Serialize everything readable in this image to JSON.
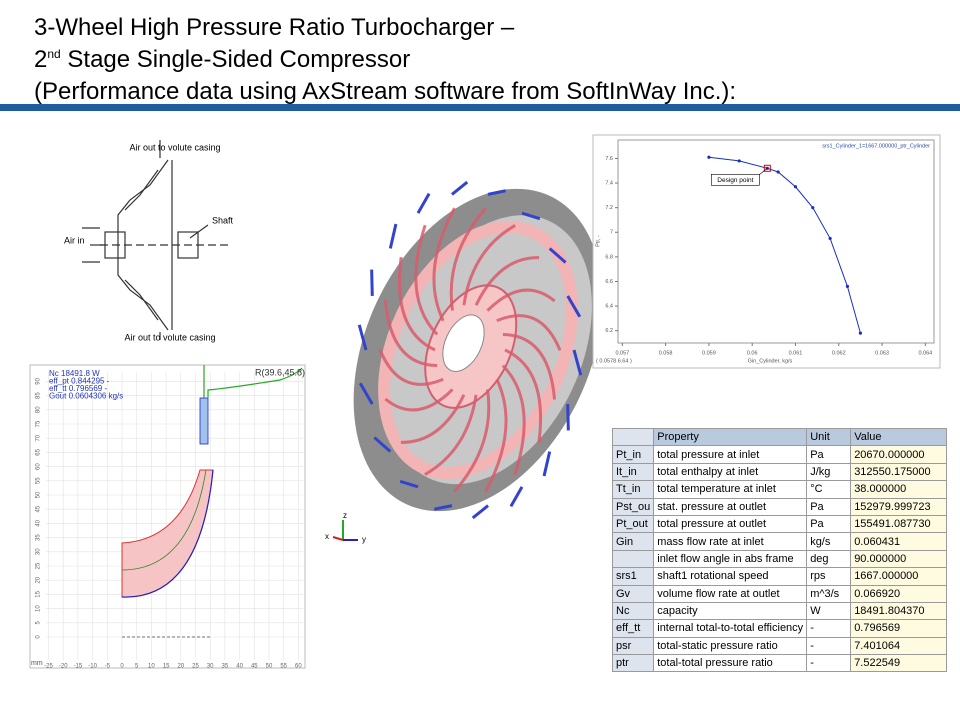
{
  "header": {
    "line1": "3-Wheel High Pressure Ratio Turbocharger –",
    "line2_num": "2",
    "line2_sup": "nd",
    "line2_rest": " Stage Single-Sided Compressor",
    "line3": "(Performance data using AxStream software from SoftInWay Inc.):"
  },
  "schematic": {
    "top_label": "Air out to volute casing",
    "shaft_label": "Shaft",
    "inlet_label": "Air in",
    "bottom_label": "Air out to volute casing"
  },
  "chart": {
    "type": "line",
    "title": "srs1_Cylinder_1=1667.000000_ptr_Cylinder",
    "x_label": "Gin_Cylinder, kg/s",
    "y_label": "Ptr, -",
    "cursor": "( 0.0578    6.64 )",
    "annotation": "Design point",
    "design_index": 2,
    "x": [
      0.059,
      0.0597,
      0.06035,
      0.0606,
      0.061,
      0.0614,
      0.0618,
      0.0622,
      0.0625
    ],
    "values": [
      7.61,
      7.58,
      7.52,
      7.49,
      7.37,
      7.2,
      6.95,
      6.56,
      6.18
    ],
    "color": "#1a2fbf",
    "xlim": [
      0.0569,
      0.0642
    ],
    "ylim": [
      6.1,
      7.75
    ],
    "xticks": [
      0.057,
      0.058,
      0.059,
      0.06,
      0.061,
      0.062,
      0.063,
      0.064
    ],
    "yticks": [
      6.2,
      6.4,
      6.6,
      6.8,
      7,
      7.2,
      7.4,
      7.6
    ]
  },
  "meridional": {
    "stats": [
      "Nc 18491.8 W",
      "eff_pt 0.844295 -",
      "eff_tt 0.796569 -",
      "Gout 0.0604306 kg/s"
    ],
    "point_label": "R(39.6,45.8)",
    "unit": "mm",
    "xticks": [
      -25,
      -20,
      -15,
      -10,
      -5,
      0,
      5,
      10,
      15,
      20,
      25,
      30,
      35,
      40,
      45,
      50,
      55,
      60
    ],
    "yticks": [
      0,
      5,
      10,
      15,
      20,
      25,
      30,
      35,
      40,
      45,
      50,
      55,
      60,
      65,
      70,
      75,
      80,
      85,
      90
    ]
  },
  "triad": {
    "z": "z",
    "y": "y",
    "x": "x"
  },
  "table": {
    "header": [
      null,
      "Property",
      "Unit",
      "Value"
    ],
    "rows": [
      [
        "Pt_in",
        "total pressure at inlet",
        "Pa",
        "20670.000000"
      ],
      [
        "It_in",
        "total enthalpy at inlet",
        "J/kg",
        "312550.175000"
      ],
      [
        "Tt_in",
        "total temperature at inlet",
        "°C",
        "38.000000"
      ],
      [
        "Pst_ou",
        "stat. pressure at outlet",
        "Pa",
        "152979.999723"
      ],
      [
        "Pt_out",
        "total pressure at outlet",
        "Pa",
        "155491.087730"
      ],
      [
        "Gin",
        "mass flow rate at inlet",
        "kg/s",
        "0.060431"
      ],
      [
        null,
        "inlet flow angle in abs frame",
        "deg",
        "90.000000"
      ],
      [
        "srs1",
        "shaft1 rotational speed",
        "rps",
        "1667.000000"
      ],
      [
        "Gv",
        "volume flow rate at outlet",
        "m^3/s",
        "0.066920"
      ],
      [
        "Nc",
        "capacity",
        "W",
        "18491.804370"
      ],
      [
        "eff_tt",
        "internal total-to-total efficiency",
        "-",
        "0.796569"
      ],
      [
        "psr",
        "total-static pressure ratio",
        "-",
        "7.401064"
      ],
      [
        "ptr",
        "total-total pressure ratio",
        "-",
        "7.522549"
      ]
    ]
  }
}
